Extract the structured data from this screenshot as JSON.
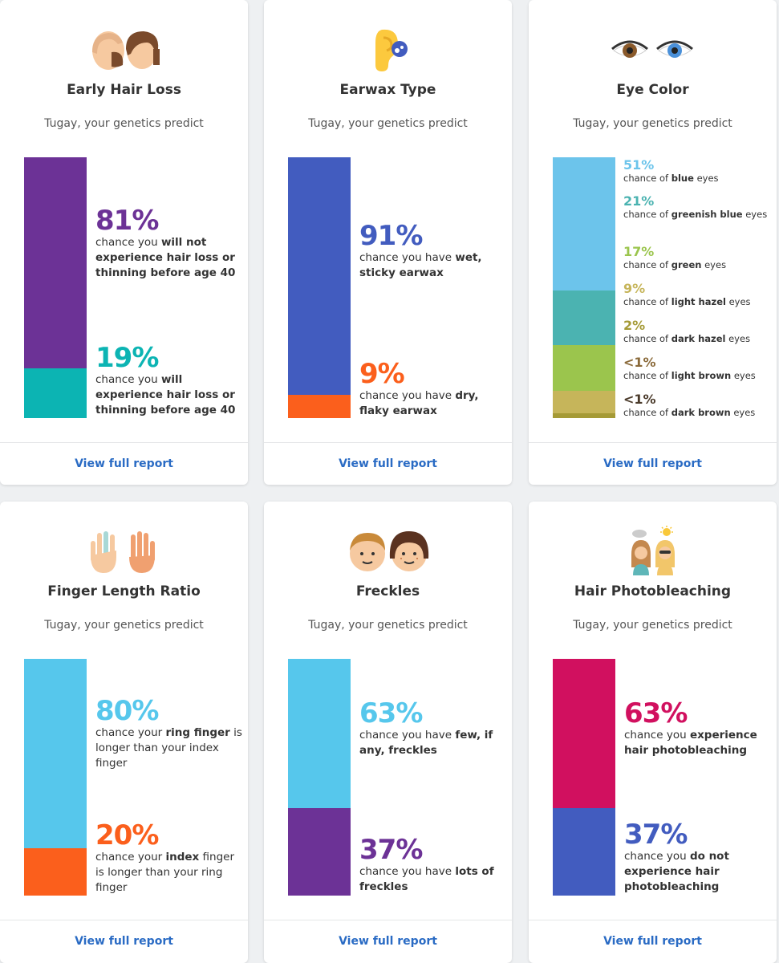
{
  "colors": {
    "purple": "#6c3296",
    "teal": "#0cb4b3",
    "indigo": "#425cbf",
    "orange": "#fb5f1c",
    "sky": "#56c7ec",
    "magenta": "#d1105f",
    "link": "#2a6bc4"
  },
  "cards": [
    {
      "title": "Early Hair Loss",
      "subtitle": "Tugay, your genetics predict",
      "icon": "bald-and-hair-faces-icon",
      "results": [
        {
          "pct": "81%",
          "pre": "chance you ",
          "bold": "will not experience hair loss or thinning before age 40",
          "post": "",
          "color": "#6c3296",
          "value": 81
        },
        {
          "pct": "19%",
          "pre": "chance you ",
          "bold": "will experience hair loss or thinning before age 40",
          "post": "",
          "color": "#0cb4b3",
          "value": 19
        }
      ],
      "link": "View full report"
    },
    {
      "title": "Earwax Type",
      "subtitle": "Tugay, your genetics predict",
      "icon": "ear-icon",
      "results": [
        {
          "pct": "91%",
          "pre": "chance you have ",
          "bold": "wet, sticky earwax",
          "post": "",
          "color": "#425cbf",
          "value": 91
        },
        {
          "pct": "9%",
          "pre": "chance you have ",
          "bold": "dry, flaky earwax",
          "post": "",
          "color": "#fb5f1c",
          "value": 9
        }
      ],
      "link": "View full report"
    },
    {
      "title": "Eye Color",
      "subtitle": "Tugay, your genetics predict",
      "icon": "eyes-icon",
      "eye_results": [
        {
          "pct": "51%",
          "pre": "chance of ",
          "bold": "blue",
          "post": " eyes",
          "color": "#6cc4eb",
          "value": 51
        },
        {
          "pct": "21%",
          "pre": "chance of ",
          "bold": "greenish blue",
          "post": " eyes",
          "color": "#4bb3b1",
          "value": 21
        },
        {
          "pct": "17%",
          "pre": "chance of ",
          "bold": "green",
          "post": " eyes",
          "color": "#9bc54d",
          "value": 17
        },
        {
          "pct": "9%",
          "pre": "chance of ",
          "bold": "light hazel",
          "post": " eyes",
          "color": "#c6b55a",
          "value": 9
        },
        {
          "pct": "2%",
          "pre": "chance of ",
          "bold": "dark hazel",
          "post": " eyes",
          "color": "#a59a36",
          "value": 2
        },
        {
          "pct": "<1%",
          "pre": "chance of ",
          "bold": "light brown",
          "post": " eyes",
          "color": "#8a6a3a",
          "value": 0
        },
        {
          "pct": "<1%",
          "pre": "chance of ",
          "bold": "dark brown",
          "post": " eyes",
          "color": "#4a3a2a",
          "value": 0
        }
      ],
      "link": "View full report"
    },
    {
      "title": "Finger Length Ratio",
      "subtitle": "Tugay, your genetics predict",
      "icon": "hands-icon",
      "results": [
        {
          "pct": "80%",
          "pre": "chance your ",
          "bold": "ring finger",
          "post": " is longer than your index finger",
          "color": "#56c7ec",
          "value": 80
        },
        {
          "pct": "20%",
          "pre": "chance your ",
          "bold": "index",
          "post": " finger is longer than your ring finger",
          "color": "#fb5f1c",
          "value": 20
        }
      ],
      "link": "View full report"
    },
    {
      "title": "Freckles",
      "subtitle": "Tugay, your genetics predict",
      "icon": "kids-faces-icon",
      "results": [
        {
          "pct": "63%",
          "pre": "chance you have ",
          "bold": "few, if any, freckles",
          "post": "",
          "color": "#56c7ec",
          "value": 63
        },
        {
          "pct": "37%",
          "pre": "chance you have ",
          "bold": "lots of freckles",
          "post": "",
          "color": "#6c3296",
          "value": 37
        }
      ],
      "link": "View full report"
    },
    {
      "title": "Hair Photobleaching",
      "subtitle": "Tugay, your genetics predict",
      "icon": "sun-women-icon",
      "results": [
        {
          "pct": "63%",
          "pre": "chance you ",
          "bold": "experience hair photobleaching",
          "post": "",
          "color": "#d1105f",
          "value": 63
        },
        {
          "pct": "37%",
          "pre": "chance you ",
          "bold": "do not experience hair photobleaching",
          "post": "",
          "color": "#425cbf",
          "value": 37
        }
      ],
      "link": "View full report"
    }
  ]
}
